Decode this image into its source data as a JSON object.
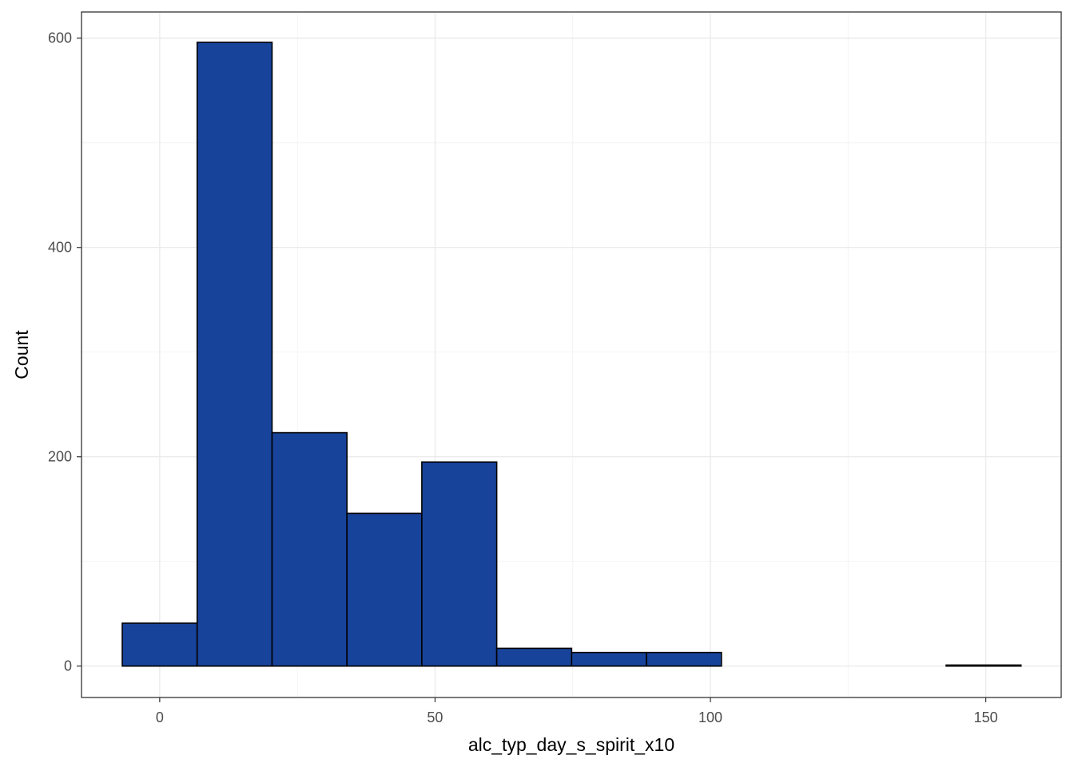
{
  "chart_data": {
    "type": "bar",
    "subtype": "histogram",
    "xlabel": "alc_typ_day_s_spirit_x10",
    "ylabel": "Count",
    "xlim": [
      -14.2,
      163.7
    ],
    "ylim": [
      -30,
      625
    ],
    "x_ticks": [
      0,
      50,
      100,
      150
    ],
    "y_ticks": [
      0,
      200,
      400,
      600
    ],
    "x_minor": [
      25,
      75,
      125
    ],
    "y_minor": [
      100,
      300,
      500
    ],
    "grid": true,
    "panel_border": true,
    "colors": {
      "fill": "#18439a",
      "outline": "#000000"
    },
    "bins": [
      {
        "x0": -6.8,
        "x1": 6.8,
        "count": 41
      },
      {
        "x0": 6.8,
        "x1": 20.4,
        "count": 596
      },
      {
        "x0": 20.4,
        "x1": 34.0,
        "count": 223
      },
      {
        "x0": 34.0,
        "x1": 47.6,
        "count": 146
      },
      {
        "x0": 47.6,
        "x1": 61.2,
        "count": 195
      },
      {
        "x0": 61.2,
        "x1": 74.8,
        "count": 17
      },
      {
        "x0": 74.8,
        "x1": 88.4,
        "count": 13
      },
      {
        "x0": 88.4,
        "x1": 102.0,
        "count": 13
      },
      {
        "x0": 102.0,
        "x1": 115.6,
        "count": 0
      },
      {
        "x0": 115.6,
        "x1": 129.2,
        "count": 0
      },
      {
        "x0": 129.2,
        "x1": 142.8,
        "count": 0
      },
      {
        "x0": 142.8,
        "x1": 156.4,
        "count": 1
      }
    ]
  }
}
